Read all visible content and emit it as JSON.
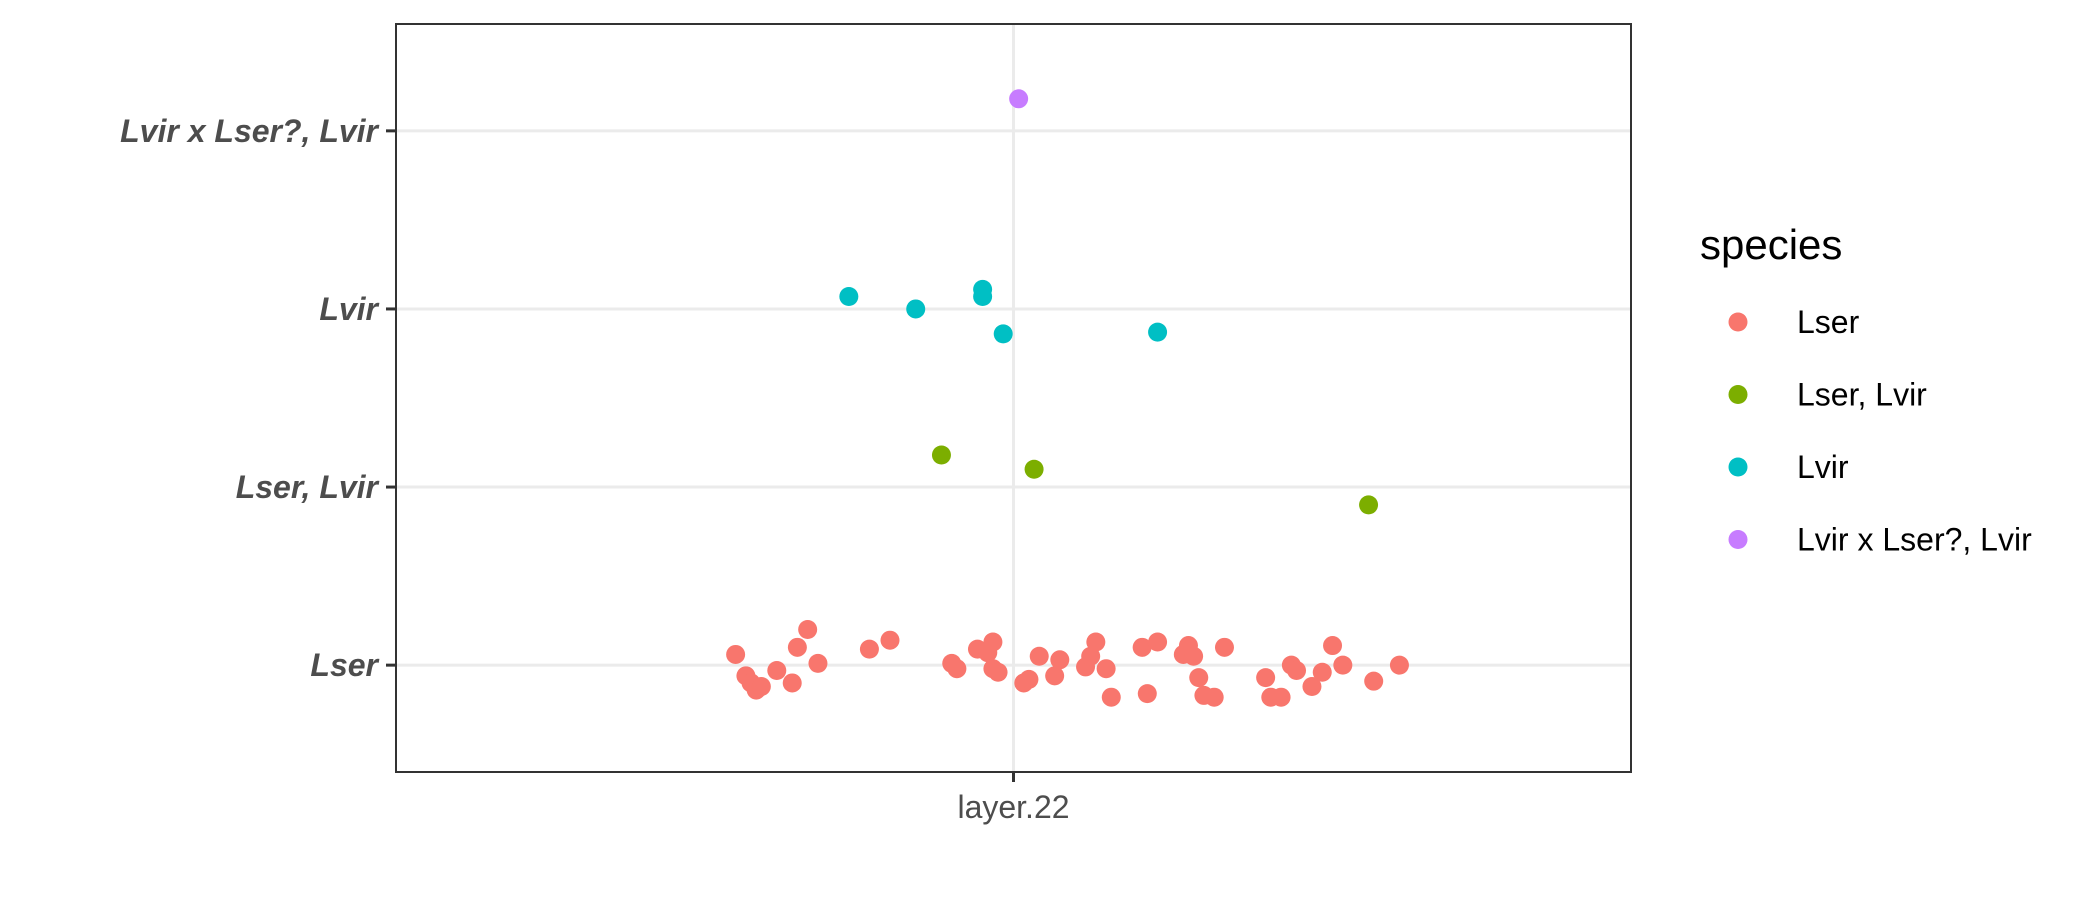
{
  "chart_data": {
    "type": "scatter",
    "title": "",
    "xlabel": "",
    "ylabel": "",
    "x_categories": [
      "layer.22"
    ],
    "y_categories": [
      "Lser",
      "Lser, Lvir",
      "Lvir",
      "Lvir x Lser?, Lvir"
    ],
    "grid": true,
    "legend": {
      "title": "species",
      "position": "right",
      "entries": [
        "Lser",
        "Lser, Lvir",
        "Lvir",
        "Lvir x Lser?, Lvir"
      ]
    },
    "colors": {
      "Lser": "#F8766D",
      "Lser, Lvir": "#7CAE00",
      "Lvir": "#00BFC4",
      "Lvir x Lser?, Lvir": "#C77CFF"
    },
    "series": [
      {
        "name": "Lser",
        "points": [
          [
            0.73,
            0.06
          ],
          [
            0.74,
            -0.06
          ],
          [
            0.745,
            -0.1
          ],
          [
            0.75,
            -0.14
          ],
          [
            0.755,
            -0.12
          ],
          [
            0.77,
            -0.03
          ],
          [
            0.785,
            -0.1
          ],
          [
            0.79,
            0.1
          ],
          [
            0.8,
            0.2
          ],
          [
            0.81,
            0.01
          ],
          [
            0.86,
            0.09
          ],
          [
            0.88,
            0.14
          ],
          [
            0.94,
            0.01
          ],
          [
            0.945,
            -0.02
          ],
          [
            0.965,
            0.09
          ],
          [
            0.975,
            0.07
          ],
          [
            0.98,
            0.13
          ],
          [
            0.98,
            -0.02
          ],
          [
            0.985,
            -0.04
          ],
          [
            1.01,
            -0.1
          ],
          [
            1.015,
            -0.08
          ],
          [
            1.025,
            0.05
          ],
          [
            1.04,
            -0.06
          ],
          [
            1.045,
            0.03
          ],
          [
            1.07,
            -0.01
          ],
          [
            1.075,
            0.05
          ],
          [
            1.08,
            0.13
          ],
          [
            1.09,
            -0.02
          ],
          [
            1.095,
            -0.18
          ],
          [
            1.125,
            0.1
          ],
          [
            1.13,
            -0.16
          ],
          [
            1.14,
            0.13
          ],
          [
            1.165,
            0.06
          ],
          [
            1.17,
            0.11
          ],
          [
            1.175,
            0.05
          ],
          [
            1.18,
            -0.07
          ],
          [
            1.185,
            -0.17
          ],
          [
            1.195,
            -0.18
          ],
          [
            1.205,
            0.1
          ],
          [
            1.245,
            -0.07
          ],
          [
            1.25,
            -0.18
          ],
          [
            1.26,
            -0.18
          ],
          [
            1.27,
            0.0
          ],
          [
            1.275,
            -0.03
          ],
          [
            1.29,
            -0.12
          ],
          [
            1.3,
            -0.04
          ],
          [
            1.31,
            0.11
          ],
          [
            1.32,
            0.0
          ],
          [
            1.35,
            -0.09
          ],
          [
            1.375,
            0.0
          ]
        ]
      },
      {
        "name": "Lser, Lvir",
        "points": [
          [
            0.93,
            1.18
          ],
          [
            1.02,
            1.1
          ],
          [
            1.345,
            0.9
          ]
        ]
      },
      {
        "name": "Lvir",
        "points": [
          [
            0.84,
            2.07
          ],
          [
            0.905,
            2.0
          ],
          [
            0.97,
            2.11
          ],
          [
            0.97,
            2.07
          ],
          [
            0.99,
            1.86
          ],
          [
            1.14,
            1.87
          ]
        ]
      },
      {
        "name": "Lvir x Lser?, Lvir",
        "points": [
          [
            1.005,
            3.18
          ]
        ]
      }
    ]
  }
}
